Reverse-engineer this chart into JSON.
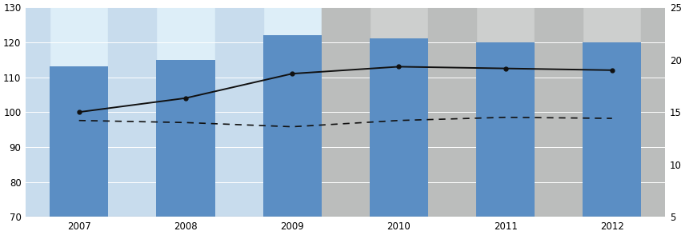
{
  "years": [
    2007,
    2008,
    2009,
    2010,
    2011,
    2012
  ],
  "bar_values": [
    113,
    115,
    122,
    121,
    120,
    120
  ],
  "solid_line_left": [
    100,
    104,
    111,
    113,
    112.5,
    112
  ],
  "dashed_line_right": [
    14.2,
    14.0,
    13.6,
    14.2,
    14.5,
    14.4
  ],
  "bar_color": "#5b8ec4",
  "line_solid_color": "#111111",
  "line_dashed_color": "#111111",
  "bg_left_color": "#ddeef8",
  "bg_right_color": "#cdcfce",
  "bg_left_stripe": "#c8dced",
  "bg_right_stripe": "#bbbdbc",
  "ylim_left": [
    70,
    130
  ],
  "ylim_right": [
    5,
    25
  ],
  "yticks_left": [
    70,
    80,
    90,
    100,
    110,
    120,
    130
  ],
  "yticks_right": [
    5,
    10,
    15,
    20,
    25
  ],
  "split_year": 2009.5,
  "bar_width": 0.55,
  "figsize": [
    8.56,
    2.94
  ],
  "dpi": 100
}
